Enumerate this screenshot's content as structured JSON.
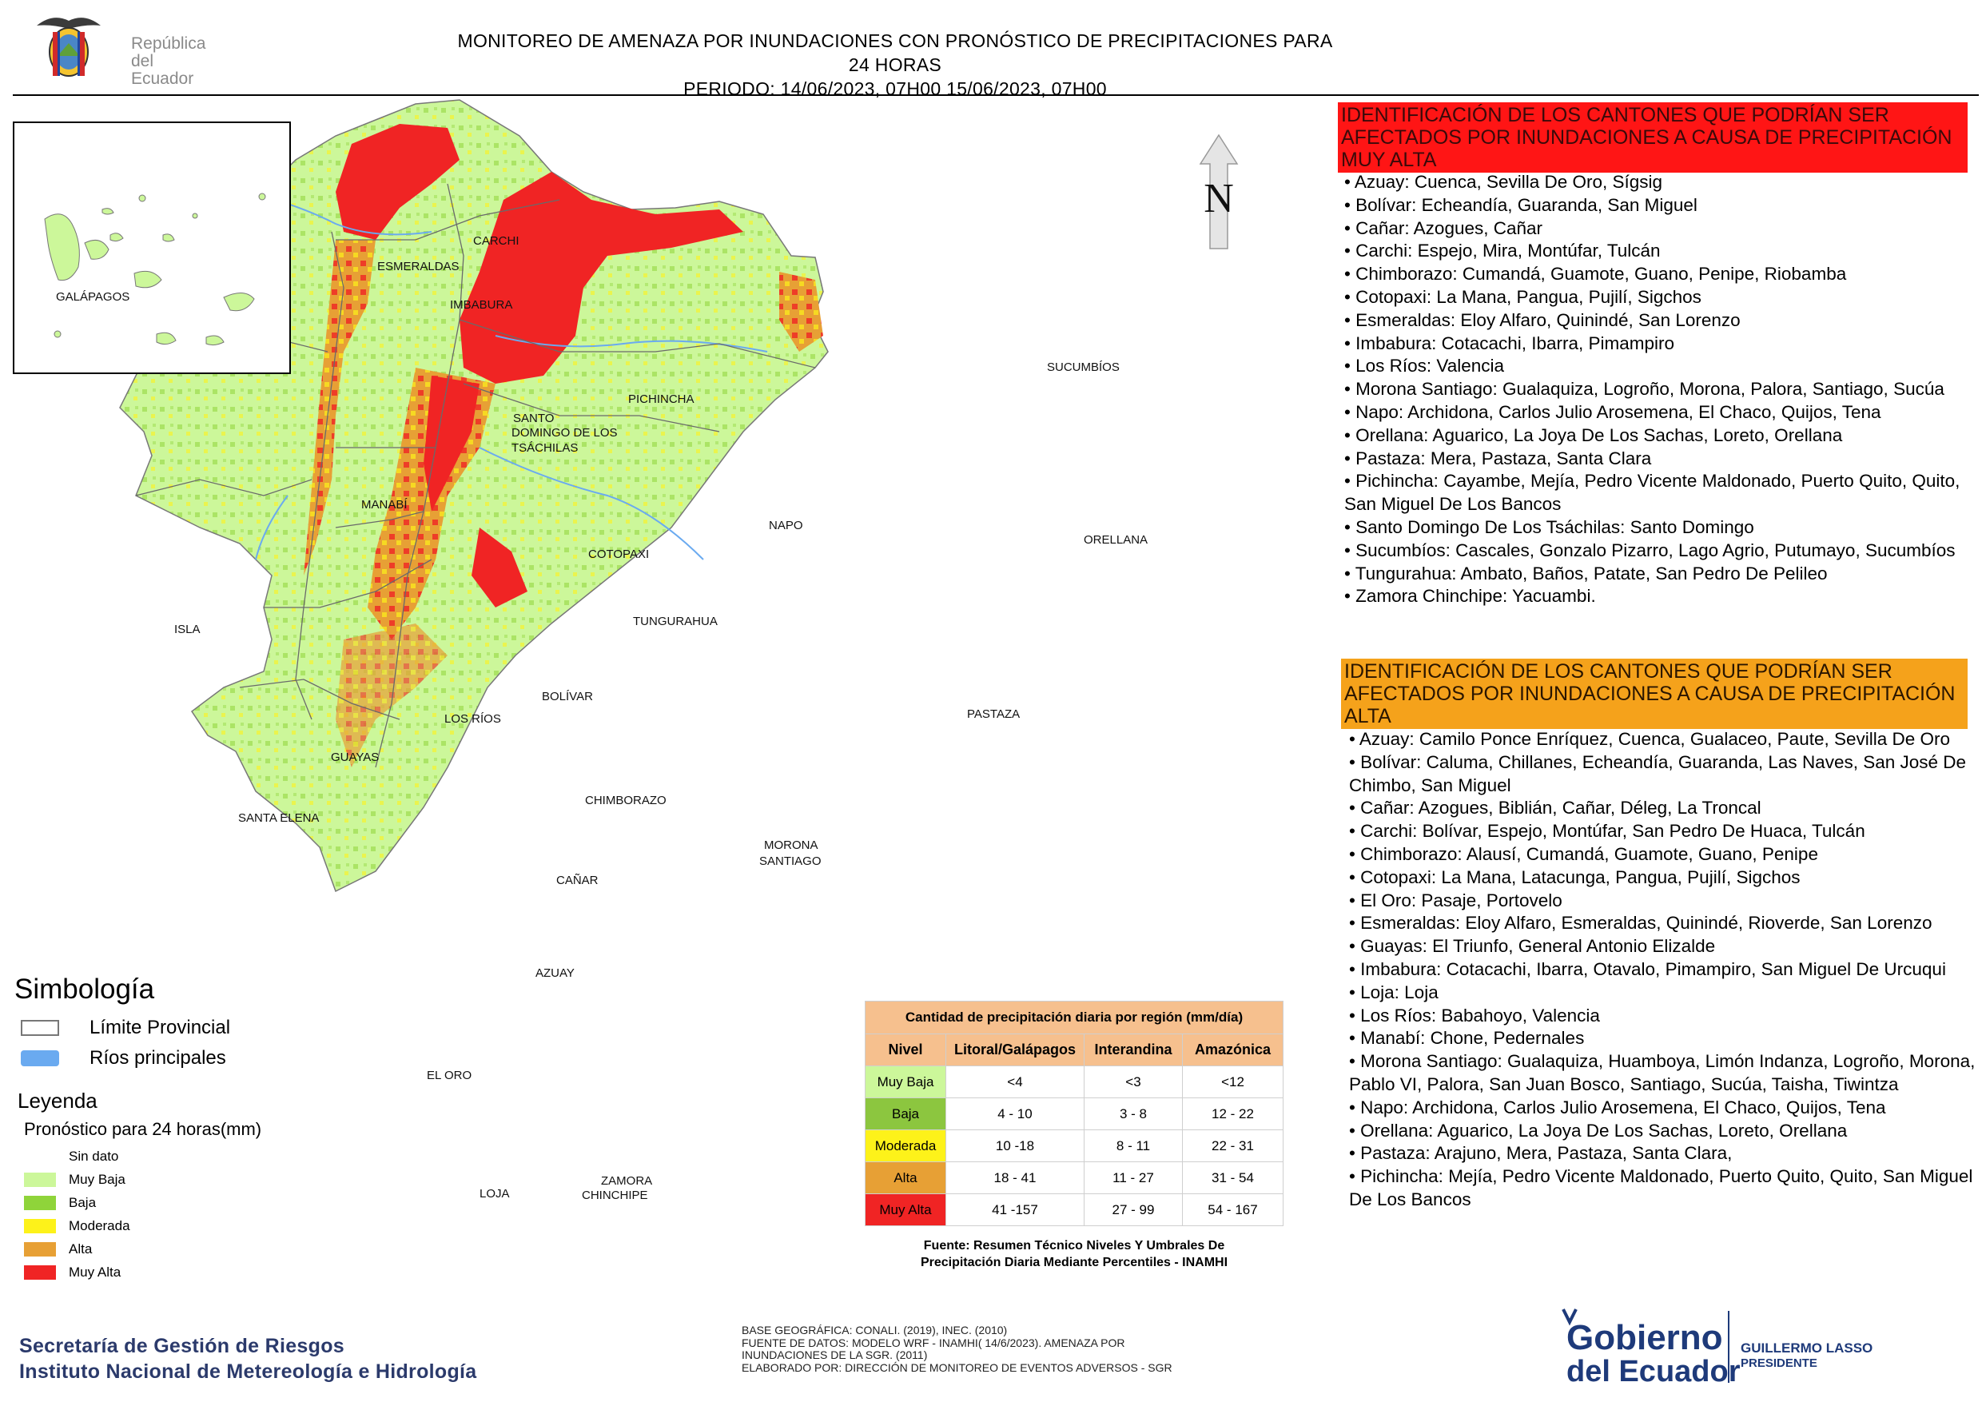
{
  "header": {
    "logo_line1": "República",
    "logo_line2": "del Ecuador",
    "title_line1": "MONITOREO DE AMENAZA POR INUNDACIONES  CON PRONÓSTICO DE  PRECIPITACIONES PARA 24 HORAS",
    "title_line2": "PERIODO: 14/06/2023, 07H00 15/06/2023, 07H00"
  },
  "map": {
    "north_label": "N",
    "inset_label": "GALÁPAGOS",
    "province_labels": [
      "CARCHI",
      "ESMERALDAS",
      "IMBABURA",
      "SUCUMBÍOS",
      "PICHINCHA",
      "SANTO",
      "DOMINGO DE LOS",
      "TSÁCHILAS",
      "MANABÍ",
      "NAPO",
      "ORELLANA",
      "COTOPAXI",
      "ISLA",
      "TUNGURAHUA",
      "BOLÍVAR",
      "LOS RÍOS",
      "PASTAZA",
      "GUAYAS",
      "CHIMBORAZO",
      "SANTA ELENA",
      "MORONA",
      "SANTIAGO",
      "CAÑAR",
      "AZUAY",
      "EL ORO",
      "ZAMORA",
      "CHINCHIPE",
      "LOJA"
    ]
  },
  "simbologia": {
    "title": "Simbología",
    "items": [
      {
        "label": "Límite Provincial",
        "icon": "province-boundary-swatch"
      },
      {
        "label": "Ríos principales",
        "icon": "river-swatch",
        "color": "#6aaaf0"
      }
    ]
  },
  "leyenda": {
    "title": "Leyenda",
    "subtitle": "Pronóstico para 24 horas(mm)",
    "items": [
      {
        "label": "Sin dato",
        "color": "#ffffff"
      },
      {
        "label": "Muy Baja",
        "color": "#ccf79a"
      },
      {
        "label": "Baja",
        "color": "#8fd43a"
      },
      {
        "label": "Moderada",
        "color": "#fdf21a"
      },
      {
        "label": "Alta",
        "color": "#e7a035"
      },
      {
        "label": "Muy Alta",
        "color": "#f02424"
      }
    ]
  },
  "precip_table": {
    "title": "Cantidad de precipitación diaria por región (mm/día)",
    "headers": [
      "Nivel",
      "Litoral/Galápagos",
      "Interandina",
      "Amazónica"
    ],
    "rows": [
      {
        "nivel": "Muy Baja",
        "color": "#ccf79a",
        "values": [
          "<4",
          "<3",
          "<12"
        ]
      },
      {
        "nivel": "Baja",
        "color": "#8cc63f",
        "values": [
          "4 - 10",
          "3 - 8",
          "12 - 22"
        ]
      },
      {
        "nivel": "Moderada",
        "color": "#fdf21a",
        "values": [
          "10 -18",
          "8 - 11",
          "22 - 31"
        ]
      },
      {
        "nivel": "Alta",
        "color": "#e7a035",
        "values": [
          "18 - 41",
          "11 - 27",
          "31 - 54"
        ]
      },
      {
        "nivel": "Muy Alta",
        "color": "#f02424",
        "values": [
          "41 -157",
          "27 - 99",
          "54 - 167"
        ]
      }
    ],
    "source_line1": "Fuente: Resumen Técnico Niveles Y Umbrales De",
    "source_line2": "Precipitación Diaria Mediante Percentiles - INAMHI"
  },
  "right_panel": {
    "muy_alta_header": "IDENTIFICACIÓN DE LOS CANTONES QUE PODRÍAN SER AFECTADOS POR INUNDACIONES  A CAUSA DE PRECIPITACIÓN MUY ALTA",
    "muy_alta_items": [
      "• Azuay: Cuenca, Sevilla De Oro, Sígsig",
      "• Bolívar: Echeandía, Guaranda, San Miguel",
      "• Cañar: Azogues, Cañar",
      "• Carchi: Espejo, Mira, Montúfar, Tulcán",
      "• Chimborazo: Cumandá, Guamote, Guano, Penipe, Riobamba",
      "• Cotopaxi: La Mana, Pangua, Pujilí, Sigchos",
      "• Esmeraldas: Eloy Alfaro, Quinindé, San Lorenzo",
      "• Imbabura: Cotacachi, Ibarra, Pimampiro",
      "• Los Ríos: Valencia",
      "• Morona Santiago: Gualaquiza, Logroño, Morona, Palora, Santiago, Sucúa",
      "• Napo: Archidona, Carlos Julio Arosemena, El Chaco, Quijos, Tena",
      "• Orellana: Aguarico, La Joya De Los Sachas, Loreto, Orellana",
      "• Pastaza: Mera, Pastaza, Santa Clara",
      "• Pichincha: Cayambe, Mejía, Pedro Vicente Maldonado, Puerto Quito, Quito, San Miguel De Los Bancos",
      "• Santo Domingo De Los Tsáchilas: Santo Domingo",
      "• Sucumbíos: Cascales, Gonzalo Pizarro, Lago Agrio, Putumayo, Sucumbíos",
      "• Tungurahua: Ambato, Baños, Patate, San Pedro De Pelileo",
      "• Zamora Chinchipe: Yacuambi."
    ],
    "alta_header": "IDENTIFICACIÓN DE LOS CANTONES QUE  PODRÍAN SER AFECTADOS POR INUNDACIONES  A CAUSA DE PRECIPITACIÓN ALTA",
    "alta_items": [
      "• Azuay: Camilo Ponce Enríquez, Cuenca, Gualaceo, Paute, Sevilla De Oro",
      "• Bolívar: Caluma, Chillanes, Echeandía, Guaranda, Las Naves, San José De Chimbo, San Miguel",
      "• Cañar: Azogues, Biblián, Cañar, Déleg, La Troncal",
      "• Carchi: Bolívar, Espejo, Montúfar, San Pedro De Huaca, Tulcán",
      "• Chimborazo: Alausí, Cumandá, Guamote, Guano, Penipe",
      "• Cotopaxi: La Mana, Latacunga, Pangua, Pujilí, Sigchos",
      "• El Oro: Pasaje, Portovelo",
      "• Esmeraldas: Eloy Alfaro, Esmeraldas, Quinindé, Rioverde, San Lorenzo",
      "• Guayas: El Triunfo, General Antonio Elizalde",
      "• Imbabura: Cotacachi, Ibarra, Otavalo, Pimampiro, San Miguel De Urcuqui",
      "• Loja: Loja",
      "• Los Ríos: Babahoyo, Valencia",
      "• Manabí: Chone, Pedernales",
      "• Morona Santiago: Gualaquiza, Huamboya, Limón Indanza, Logroño, Morona, Pablo VI, Palora, San Juan Bosco, Santiago, Sucúa, Taisha, Tiwintza",
      "• Napo: Archidona, Carlos Julio Arosemena, El Chaco, Quijos, Tena",
      "• Orellana: Aguarico, La Joya De Los Sachas, Loreto, Orellana",
      "• Pastaza: Arajuno, Mera, Pastaza, Santa Clara,",
      "• Pichincha: Mejía, Pedro Vicente Maldonado, Puerto Quito, Quito, San Miguel De Los Bancos"
    ]
  },
  "footer": {
    "institution_1": "Secretaría de Gestión de Riesgos",
    "institution_2": "Instituto Nacional de Metereología e Hidrología",
    "credits": [
      "BASE GEOGRÁFICA: CONALI. (2019), INEC. (2010)",
      "FUENTE DE DATOS: MODELO WRF - INAMHI( 14/6/2023).  AMENAZA POR",
      "INUNDACIONES DE LA SGR. (2011)",
      "ELABORADO POR: DIRECCIÓN DE MONITOREO DE EVENTOS ADVERSOS - SGR"
    ],
    "gob_line1": "Gobierno",
    "gob_line2": "del Ecuador",
    "president_line1": "GUILLERMO LASSO",
    "president_line2": "PRESIDENTE"
  }
}
